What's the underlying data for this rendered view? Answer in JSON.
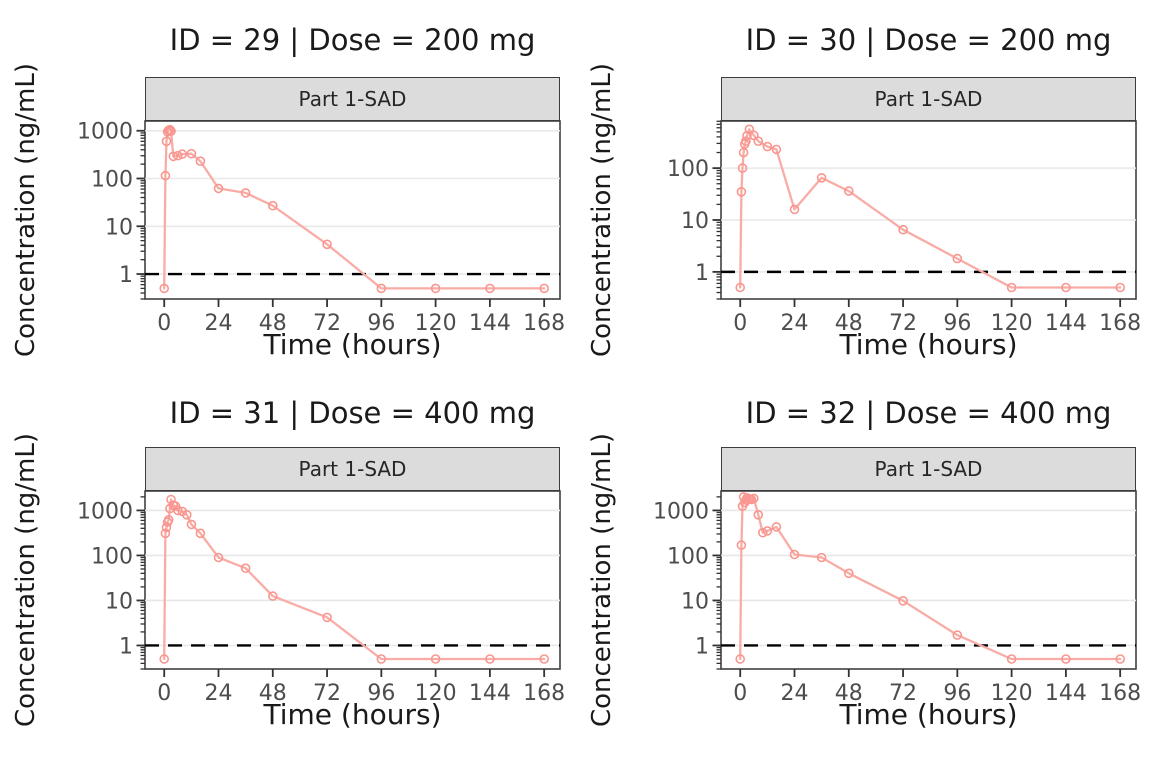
{
  "figure_caption": "PK concentration-time profiles grid",
  "colors": {
    "series_line": "#F9ACA6",
    "series_marker": "#F8968F",
    "lloq_line": "#000000",
    "strip_bg": "#DCDCDC",
    "strip_border": "#3C3C3C",
    "panel_border": "#404040",
    "grid_line": "#E8E8E8",
    "axis_tick": "#333333",
    "axis_text": "#4D4D4D",
    "title_text": "#1A1A1A"
  },
  "chart_data": [
    {
      "type": "line",
      "title": "ID = 29 | Dose = 200 mg",
      "strip_label": "Part 1-SAD",
      "xlabel": "Time (hours)",
      "ylabel": "Concentration (ng/mL)",
      "x_ticks": [
        0,
        24,
        48,
        72,
        96,
        120,
        144,
        168
      ],
      "y_ticks": [
        1,
        10,
        100,
        1000
      ],
      "xlim": [
        0,
        168
      ],
      "ylim": [
        0.3,
        1600
      ],
      "y_scale": "log10",
      "grid": "major-horizontal",
      "legend": "none",
      "lloq": 1,
      "x": [
        0,
        0.5,
        1,
        1.5,
        2,
        2.5,
        3,
        4,
        6,
        8,
        12,
        16,
        24,
        36,
        48,
        72,
        96,
        120,
        144,
        168
      ],
      "y": [
        0.5,
        115,
        600,
        950,
        1020,
        1050,
        980,
        290,
        300,
        325,
        330,
        230,
        62,
        50,
        27,
        4.2,
        0.5,
        0.5,
        0.5,
        0.5
      ]
    },
    {
      "type": "line",
      "title": "ID = 30 | Dose = 200 mg",
      "strip_label": "Part 1-SAD",
      "xlabel": "Time (hours)",
      "ylabel": "Concentration (ng/mL)",
      "x_ticks": [
        0,
        24,
        48,
        72,
        96,
        120,
        144,
        168
      ],
      "y_ticks": [
        1,
        10,
        100
      ],
      "xlim": [
        0,
        168
      ],
      "ylim": [
        0.3,
        810
      ],
      "y_scale": "log10",
      "grid": "major-horizontal",
      "legend": "none",
      "lloq": 1,
      "x": [
        0,
        0.5,
        1,
        1.5,
        2,
        2.5,
        3,
        4,
        6,
        8,
        12,
        16,
        24,
        36,
        48,
        72,
        96,
        120,
        144,
        168
      ],
      "y": [
        0.5,
        35,
        100,
        200,
        290,
        330,
        420,
        560,
        430,
        330,
        260,
        230,
        16,
        65,
        36,
        6.5,
        1.8,
        0.5,
        0.5,
        0.5
      ]
    },
    {
      "type": "line",
      "title": "ID = 31 | Dose = 400 mg",
      "strip_label": "Part 1-SAD",
      "xlabel": "Time (hours)",
      "ylabel": "Concentration (ng/mL)",
      "x_ticks": [
        0,
        24,
        48,
        72,
        96,
        120,
        144,
        168
      ],
      "y_ticks": [
        1,
        10,
        100,
        1000
      ],
      "xlim": [
        0,
        168
      ],
      "ylim": [
        0.3,
        2700
      ],
      "y_scale": "log10",
      "grid": "major-horizontal",
      "legend": "none",
      "lloq": 1,
      "x": [
        0,
        0.5,
        1,
        1.5,
        2,
        2.5,
        3,
        4,
        5,
        6,
        8,
        10,
        12,
        16,
        24,
        36,
        48,
        72,
        96,
        120,
        144,
        168
      ],
      "y": [
        0.5,
        310,
        420,
        550,
        620,
        1100,
        1750,
        1300,
        1250,
        1000,
        950,
        800,
        490,
        310,
        90,
        52,
        12.5,
        4.2,
        0.5,
        0.5,
        0.5,
        0.5
      ]
    },
    {
      "type": "line",
      "title": "ID = 32 | Dose = 400 mg",
      "strip_label": "Part 1-SAD",
      "xlabel": "Time (hours)",
      "ylabel": "Concentration (ng/mL)",
      "x_ticks": [
        0,
        24,
        48,
        72,
        96,
        120,
        144,
        168
      ],
      "y_ticks": [
        1,
        10,
        100,
        1000
      ],
      "xlim": [
        0,
        168
      ],
      "ylim": [
        0.3,
        2700
      ],
      "y_scale": "log10",
      "grid": "major-horizontal",
      "legend": "none",
      "lloq": 1,
      "x": [
        0,
        0.5,
        1,
        1.5,
        2,
        2.5,
        3,
        4,
        5,
        6,
        8,
        10,
        12,
        16,
        24,
        36,
        48,
        72,
        96,
        120,
        144,
        168
      ],
      "y": [
        0.5,
        170,
        1250,
        2000,
        1500,
        1700,
        1900,
        1800,
        1750,
        1850,
        800,
        320,
        350,
        430,
        105,
        90,
        40,
        9.8,
        1.7,
        0.5,
        0.5,
        0.5
      ]
    }
  ]
}
